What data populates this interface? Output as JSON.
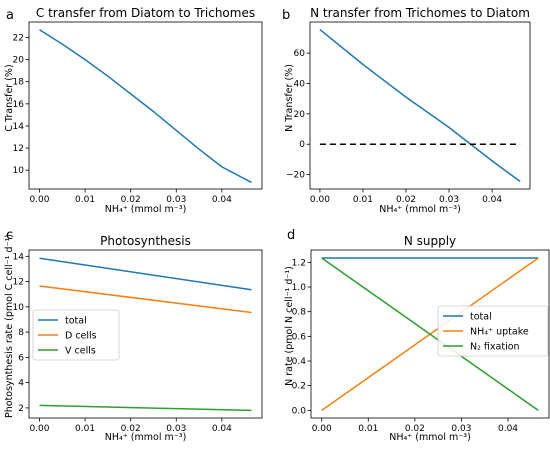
{
  "chart_data": [
    {
      "panel": "a",
      "type": "line",
      "title": "C transfer from Diatom to Trichomes",
      "xlabel": "NH₄⁺ (mmol m⁻³)",
      "ylabel": "C Transfer (%)",
      "xlim": [
        -0.0023,
        0.0488
      ],
      "ylim": [
        8.3,
        23.4
      ],
      "xticks": [
        0.0,
        0.01,
        0.02,
        0.03,
        0.04
      ],
      "xtick_labels": [
        "0.00",
        "0.01",
        "0.02",
        "0.03",
        "0.04"
      ],
      "yticks": [
        10,
        12,
        14,
        16,
        18,
        20,
        22
      ],
      "ytick_labels": [
        "10",
        "12",
        "14",
        "16",
        "18",
        "20",
        "22"
      ],
      "series": [
        {
          "color": "#1f77b4",
          "dashed": false,
          "x": [
            0.0,
            0.005,
            0.01,
            0.015,
            0.02,
            0.025,
            0.03,
            0.035,
            0.04,
            0.0465
          ],
          "y": [
            22.7,
            21.4,
            20.0,
            18.5,
            16.9,
            15.3,
            13.6,
            11.9,
            10.3,
            8.9
          ]
        }
      ]
    },
    {
      "panel": "b",
      "type": "line",
      "title": "N transfer from Trichomes to Diatom",
      "xlabel": "NH₄⁺ (mmol m⁻³)",
      "ylabel": "N Transfer (%)",
      "xlim": [
        -0.0023,
        0.0488
      ],
      "ylim": [
        -29.5,
        80.5
      ],
      "xticks": [
        0.0,
        0.01,
        0.02,
        0.03,
        0.04
      ],
      "xtick_labels": [
        "0.00",
        "0.01",
        "0.02",
        "0.03",
        "0.04"
      ],
      "yticks": [
        -20,
        0,
        20,
        40,
        60
      ],
      "ytick_labels": [
        "−20",
        "0",
        "20",
        "40",
        "60"
      ],
      "series": [
        {
          "color": "#1f77b4",
          "dashed": false,
          "x": [
            0.0,
            0.01,
            0.02,
            0.03,
            0.04,
            0.0465
          ],
          "y": [
            75.5,
            52.5,
            31.0,
            11.0,
            -11.0,
            -24.5
          ]
        },
        {
          "color": "#000000",
          "dashed": true,
          "x": [
            0.0,
            0.0465
          ],
          "y": [
            0,
            0
          ]
        }
      ]
    },
    {
      "panel": "c",
      "type": "line",
      "title": "Photosynthesis",
      "xlabel": "NH₄⁺ (mmol m⁻³)",
      "ylabel": "Photosynthesis rate (pmol C cell⁻¹ d⁻¹)",
      "xlim": [
        -0.0023,
        0.0488
      ],
      "ylim": [
        1.2,
        14.5
      ],
      "xticks": [
        0.0,
        0.01,
        0.02,
        0.03,
        0.04
      ],
      "xtick_labels": [
        "0.00",
        "0.01",
        "0.02",
        "0.03",
        "0.04"
      ],
      "yticks": [
        2,
        4,
        6,
        8,
        10,
        12,
        14
      ],
      "ytick_labels": [
        "2",
        "4",
        "6",
        "8",
        "10",
        "12",
        "14"
      ],
      "legend": {
        "placement": "center-left",
        "entries": [
          "total",
          "D cells",
          "V cells"
        ]
      },
      "series": [
        {
          "name": "total",
          "color": "#1f77b4",
          "dashed": false,
          "x": [
            0.0,
            0.0465
          ],
          "y": [
            13.85,
            11.35
          ]
        },
        {
          "name": "D cells",
          "color": "#ff7f0e",
          "dashed": false,
          "x": [
            0.0,
            0.0465
          ],
          "y": [
            11.65,
            9.55
          ]
        },
        {
          "name": "V cells",
          "color": "#2ca02c",
          "dashed": false,
          "x": [
            0.0,
            0.0465
          ],
          "y": [
            2.2,
            1.8
          ]
        }
      ]
    },
    {
      "panel": "d",
      "type": "line",
      "title": "N supply",
      "xlabel": "NH₄⁺ (mmol m⁻³)",
      "ylabel": "N rate (pmol N cell⁻¹ d⁻¹)",
      "xlim": [
        -0.0023,
        0.0488
      ],
      "ylim": [
        -0.062,
        1.3
      ],
      "xticks": [
        0.0,
        0.01,
        0.02,
        0.03,
        0.04
      ],
      "xtick_labels": [
        "0.00",
        "0.01",
        "0.02",
        "0.03",
        "0.04"
      ],
      "yticks": [
        0.0,
        0.2,
        0.4,
        0.6,
        0.8,
        1.0,
        1.2
      ],
      "ytick_labels": [
        "0.0",
        "0.2",
        "0.4",
        "0.6",
        "0.8",
        "1.0",
        "1.2"
      ],
      "legend": {
        "placement": "center-right",
        "entries": [
          "total",
          "NH₄⁺ uptake",
          "N₂ fixation"
        ]
      },
      "series": [
        {
          "name": "total",
          "color": "#1f77b4",
          "dashed": false,
          "x": [
            0.0,
            0.0465
          ],
          "y": [
            1.235,
            1.235
          ]
        },
        {
          "name": "NH₄⁺ uptake",
          "color": "#ff7f0e",
          "dashed": false,
          "x": [
            0.0,
            0.0465
          ],
          "y": [
            0.0,
            1.235
          ]
        },
        {
          "name": "N₂ fixation",
          "color": "#2ca02c",
          "dashed": false,
          "x": [
            0.0,
            0.0465
          ],
          "y": [
            1.235,
            0.0
          ]
        }
      ]
    }
  ]
}
